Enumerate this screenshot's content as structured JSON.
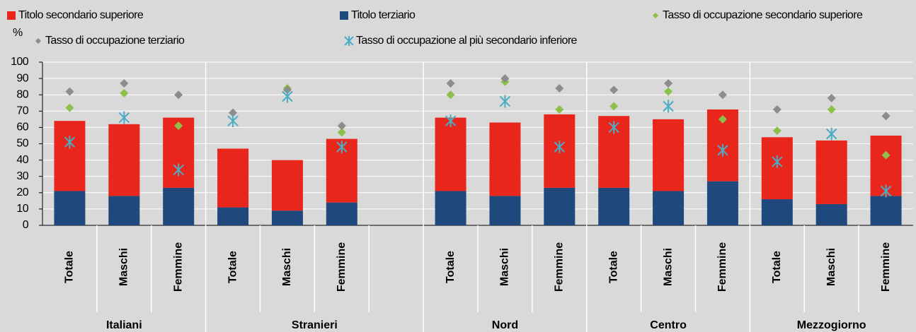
{
  "chart_data": {
    "type": "bar",
    "stacked": true,
    "y_label": "%",
    "categories": [
      "Totale",
      "Maschi",
      "Femmine",
      "Totale",
      "Maschi",
      "Femmine",
      null,
      "Totale",
      "Maschi",
      "Femmine",
      "Totale",
      "Maschi",
      "Femmine",
      "Totale",
      "Maschi",
      "Femmine"
    ],
    "groups": [
      "Italiani",
      "Stranieri",
      "Nord",
      "Centro",
      "Mezzogiorno"
    ],
    "series": [
      {
        "name": "Titolo secondario superiore",
        "type": "bar",
        "color": "#e8261c",
        "values": [
          43,
          44,
          43,
          36,
          31,
          39,
          null,
          45,
          45,
          45,
          44,
          44,
          44,
          38,
          39,
          37
        ]
      },
      {
        "name": "Titolo terziario",
        "type": "bar",
        "color": "#1f497d",
        "values": [
          21,
          18,
          23,
          11,
          9,
          14,
          null,
          21,
          18,
          23,
          23,
          21,
          27,
          16,
          13,
          18
        ]
      },
      {
        "name": "Tasso di occupazione secondario superiore",
        "type": "marker",
        "marker": "diamond",
        "color": "#8cc04a",
        "values": [
          72,
          81,
          61,
          null,
          84,
          57,
          null,
          80,
          88,
          71,
          73,
          82,
          65,
          58,
          71,
          43
        ]
      },
      {
        "name": "Tasso di occupazione terziario",
        "type": "marker",
        "marker": "diamond",
        "color": "#8c8c8c",
        "values": [
          82,
          87,
          80,
          69,
          83,
          61,
          null,
          87,
          90,
          84,
          83,
          87,
          80,
          71,
          78,
          67
        ]
      },
      {
        "name": "Tasso di occupazione al più secondario inferiore",
        "type": "marker",
        "marker": "asterisk",
        "color": "#4bacc6",
        "values": [
          51,
          66,
          34,
          64,
          79,
          48,
          null,
          64,
          76,
          48,
          60,
          73,
          46,
          39,
          56,
          21
        ]
      }
    ],
    "ylim": [
      0,
      100
    ],
    "yticks": [
      0,
      10,
      20,
      30,
      40,
      50,
      60,
      70,
      80,
      90,
      100
    ],
    "grid": true
  }
}
